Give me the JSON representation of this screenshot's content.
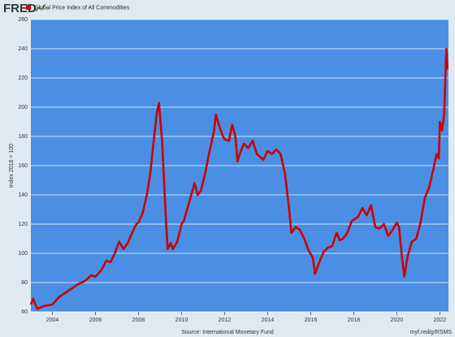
{
  "logo": "FRED",
  "chart_data": {
    "type": "line",
    "y_label": "Index 2016 = 100",
    "source": "Source: International Monetary Fund",
    "link": "myf.red/g/RSMS",
    "x": [
      2003.0,
      2003.1,
      2003.3,
      2003.6,
      2004.0,
      2004.3,
      2004.6,
      2004.9,
      2005.2,
      2005.5,
      2005.8,
      2006.0,
      2006.3,
      2006.5,
      2006.7,
      2006.9,
      2007.1,
      2007.3,
      2007.5,
      2007.7,
      2007.9,
      2008.0,
      2008.2,
      2008.4,
      2008.55,
      2008.7,
      2008.85,
      2008.95,
      2009.1,
      2009.25,
      2009.35,
      2009.5,
      2009.6,
      2009.8,
      2010.0,
      2010.1,
      2010.3,
      2010.45,
      2010.6,
      2010.75,
      2010.9,
      2011.1,
      2011.3,
      2011.5,
      2011.6,
      2011.75,
      2011.9,
      2012.0,
      2012.2,
      2012.35,
      2012.5,
      2012.6,
      2012.75,
      2012.9,
      2013.1,
      2013.3,
      2013.5,
      2013.8,
      2014.0,
      2014.2,
      2014.4,
      2014.6,
      2014.8,
      2015.0,
      2015.1,
      2015.3,
      2015.5,
      2015.7,
      2015.9,
      2016.1,
      2016.2,
      2016.4,
      2016.6,
      2016.8,
      2017.0,
      2017.2,
      2017.35,
      2017.5,
      2017.7,
      2017.9,
      2018.0,
      2018.2,
      2018.4,
      2018.6,
      2018.8,
      2019.0,
      2019.2,
      2019.4,
      2019.6,
      2019.8,
      2020.0,
      2020.1,
      2020.25,
      2020.35,
      2020.5,
      2020.7,
      2020.9,
      2021.1,
      2021.3,
      2021.5,
      2021.7,
      2021.85,
      2021.95,
      2022.0,
      2022.1,
      2022.2,
      2022.3,
      2022.35
    ],
    "series": [
      {
        "name": "Global Price Index of All Commodities",
        "color": "#cc0000",
        "values": [
          65,
          69,
          62,
          64,
          65,
          70,
          73,
          76,
          79,
          81,
          85,
          84,
          89,
          95,
          94,
          100,
          108,
          103,
          107,
          114,
          120,
          121,
          128,
          141,
          155,
          176,
          196,
          203,
          176,
          130,
          103,
          107,
          103,
          108,
          120,
          122,
          132,
          140,
          148,
          140,
          143,
          155,
          170,
          183,
          195,
          187,
          181,
          178,
          177,
          188,
          180,
          163,
          170,
          175,
          172,
          177,
          168,
          164,
          170,
          168,
          171,
          168,
          155,
          130,
          114,
          118,
          116,
          110,
          102,
          97,
          86,
          94,
          101,
          104,
          105,
          114,
          109,
          110,
          114,
          122,
          123,
          125,
          131,
          126,
          133,
          118,
          117,
          120,
          112,
          116,
          121,
          118,
          96,
          84,
          98,
          108,
          110,
          121,
          138,
          145,
          158,
          168,
          165,
          190,
          184,
          195,
          240,
          226
        ]
      }
    ],
    "xlim": [
      2003,
      2022.4
    ],
    "ylim": [
      60,
      260
    ],
    "xticks": [
      2004,
      2006,
      2008,
      2010,
      2012,
      2014,
      2016,
      2018,
      2020,
      2022
    ],
    "yticks": [
      60,
      80,
      100,
      120,
      140,
      160,
      180,
      200,
      220,
      240,
      260
    ],
    "grid": true,
    "background": "#4a8fe4"
  }
}
